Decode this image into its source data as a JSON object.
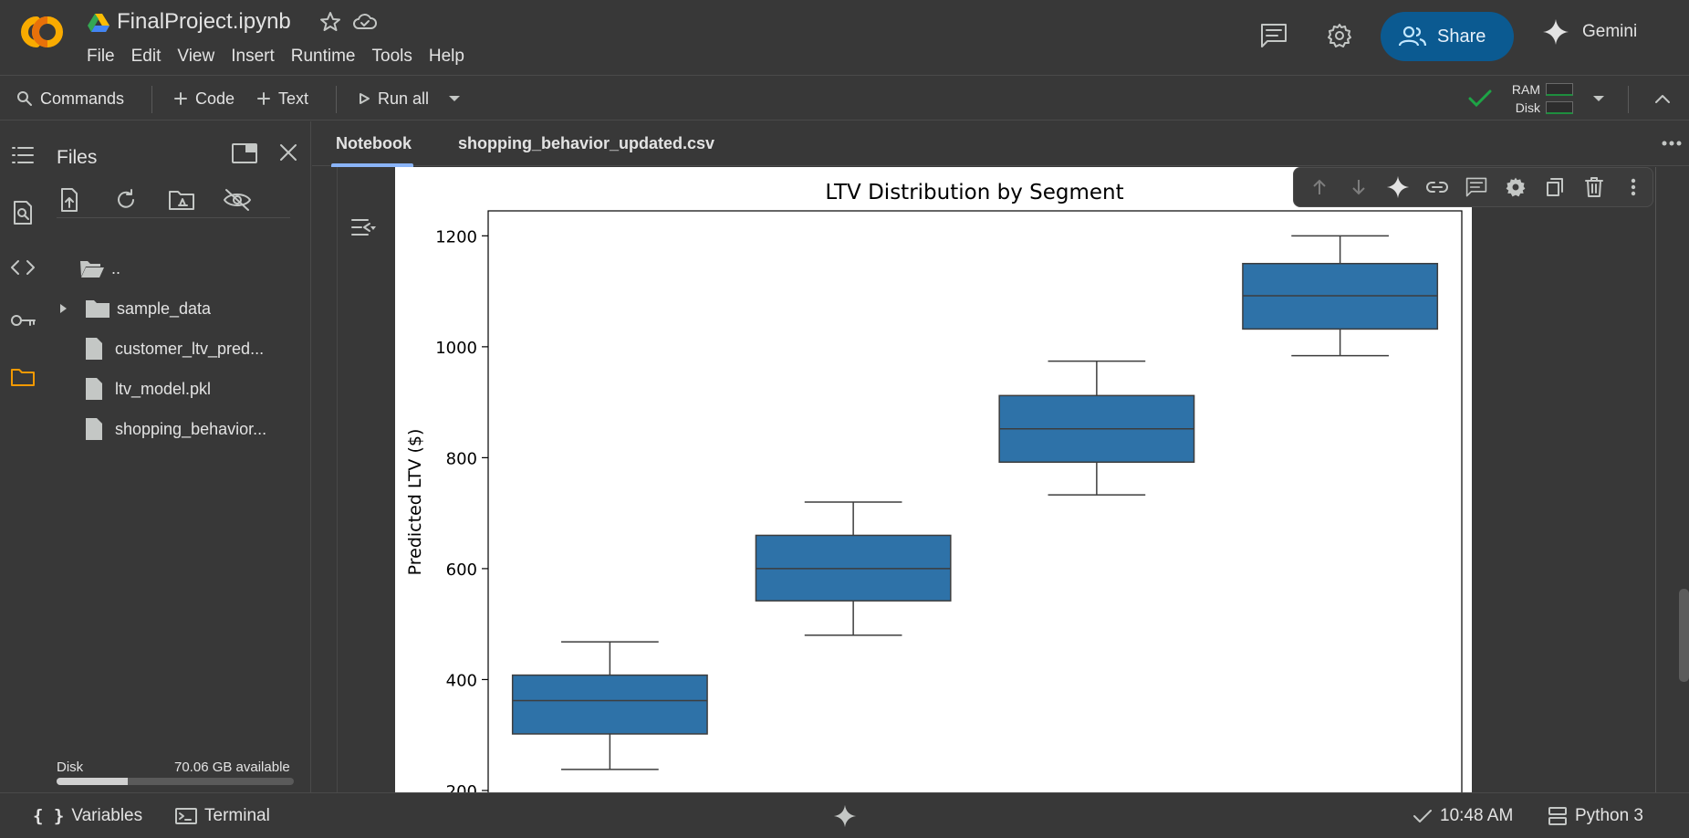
{
  "app": {
    "title": "FinalProject.ipynb",
    "logo_colors": [
      "#f9ab00",
      "#e8710a"
    ]
  },
  "menu": [
    "File",
    "Edit",
    "View",
    "Insert",
    "Runtime",
    "Tools",
    "Help"
  ],
  "header": {
    "share_label": "Share",
    "gemini_label": "Gemini"
  },
  "toolbar": {
    "commands_label": "Commands",
    "code_label": "Code",
    "text_label": "Text",
    "run_all_label": "Run all",
    "ram_label": "RAM",
    "disk_label": "Disk"
  },
  "files": {
    "title": "Files",
    "items": [
      {
        "name": "..",
        "type": "folder-open"
      },
      {
        "name": "sample_data",
        "type": "folder"
      },
      {
        "name": "customer_ltv_pred...",
        "type": "file"
      },
      {
        "name": "ltv_model.pkl",
        "type": "file"
      },
      {
        "name": "shopping_behavior...",
        "type": "file"
      }
    ],
    "disk_label": "Disk",
    "disk_available": "70.06 GB available",
    "disk_used_fraction": 0.3
  },
  "tabs": [
    {
      "label": "Notebook",
      "active": true
    },
    {
      "label": "shopping_behavior_updated.csv",
      "active": false
    }
  ],
  "statusbar": {
    "variables_label": "Variables",
    "terminal_label": "Terminal",
    "time": "10:48 AM",
    "kernel": "Python 3"
  },
  "chart_data": {
    "type": "box",
    "title": "LTV Distribution by Segment",
    "ylabel": "Predicted LTV ($)",
    "xlabel": "",
    "ylim": [
      195,
      1245
    ],
    "yticks": [
      200,
      400,
      600,
      800,
      1000,
      1200
    ],
    "color": "#2e72a8",
    "boxes": [
      {
        "min": 238,
        "q1": 302,
        "median": 362,
        "q3": 408,
        "max": 468
      },
      {
        "min": 480,
        "q1": 542,
        "median": 600,
        "q3": 660,
        "max": 720
      },
      {
        "min": 733,
        "q1": 792,
        "median": 852,
        "q3": 912,
        "max": 974
      },
      {
        "min": 984,
        "q1": 1032,
        "median": 1092,
        "q3": 1150,
        "max": 1200
      }
    ]
  }
}
